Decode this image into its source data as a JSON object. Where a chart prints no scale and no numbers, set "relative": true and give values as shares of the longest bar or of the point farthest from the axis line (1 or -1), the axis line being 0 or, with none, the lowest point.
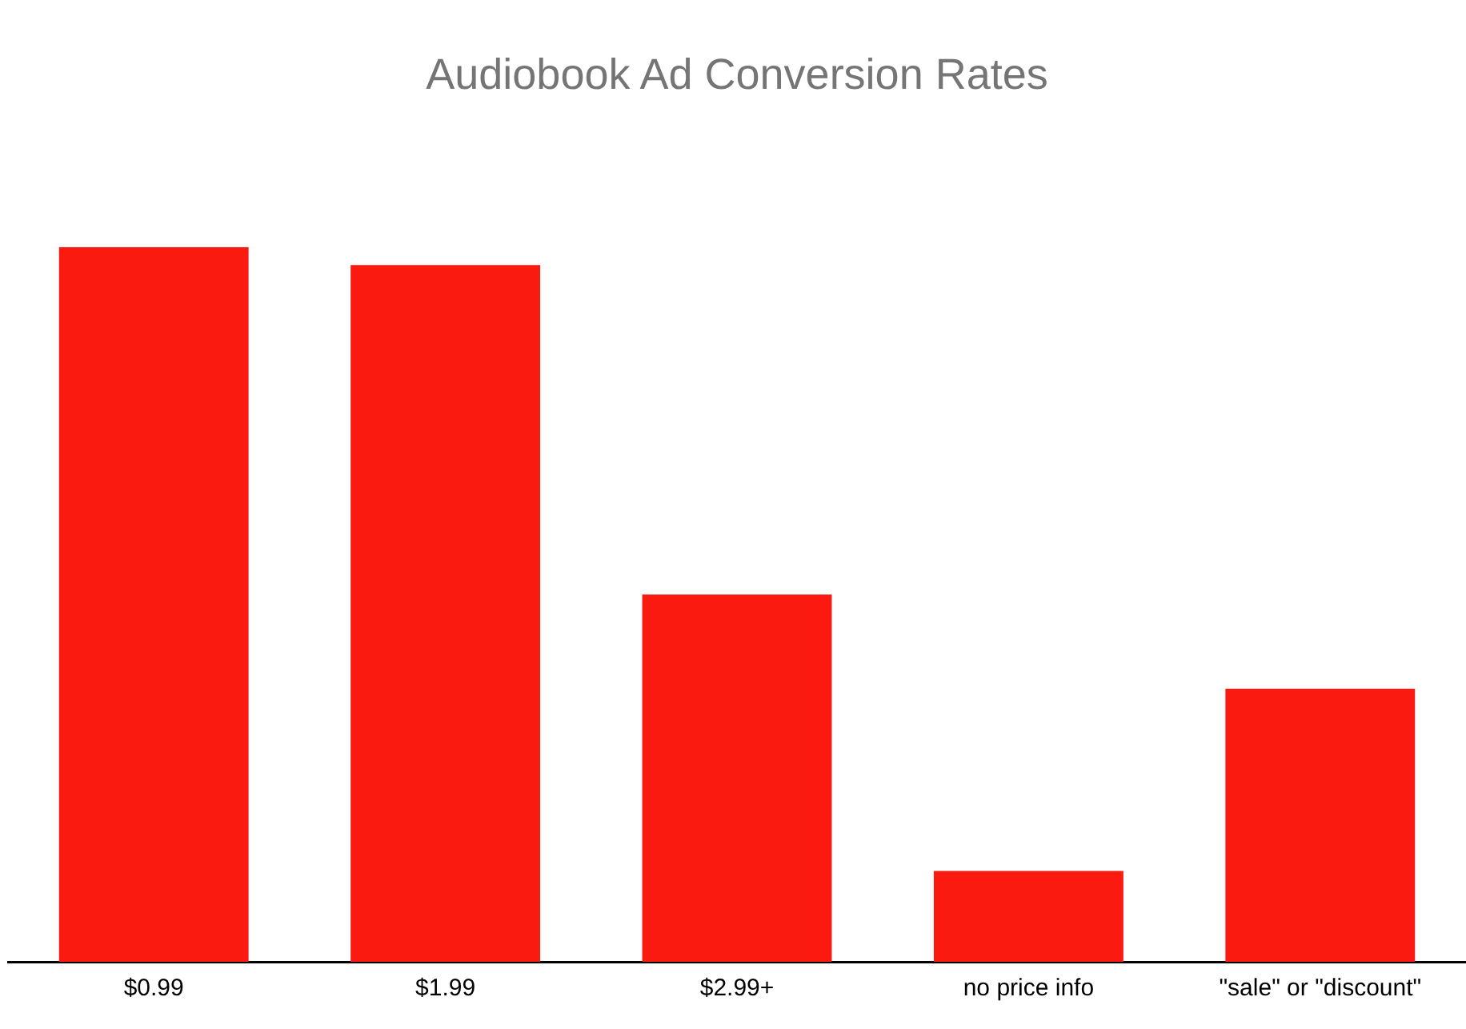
{
  "chart_data": {
    "type": "bar",
    "title": "Audiobook Ad Conversion Rates",
    "categories": [
      "$0.99",
      "$1.99",
      "$2.99+",
      "no price info",
      "\"sale\" or \"discount\""
    ],
    "values": [
      1,
      0.975,
      0.514,
      0.127,
      0.382
    ],
    "color": "#fb1a10",
    "relative": true,
    "legend": false
  }
}
